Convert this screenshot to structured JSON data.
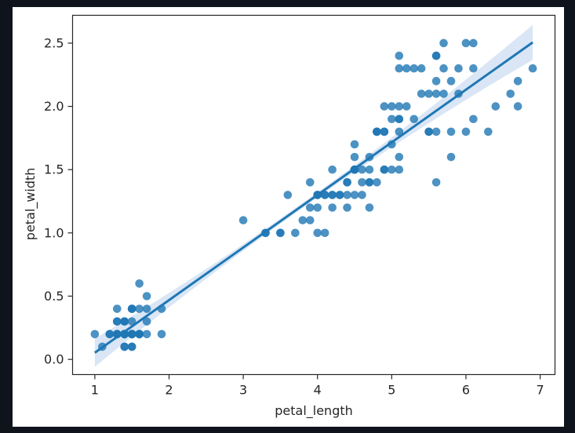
{
  "chart_data": {
    "type": "scatter",
    "xlabel": "petal_length",
    "ylabel": "petal_width",
    "xlim": [
      0.7,
      7.2
    ],
    "ylim": [
      -0.12,
      2.72
    ],
    "xticks": [
      {
        "value": 1,
        "label": "1"
      },
      {
        "value": 2,
        "label": "2"
      },
      {
        "value": 3,
        "label": "3"
      },
      {
        "value": 4,
        "label": "4"
      },
      {
        "value": 5,
        "label": "5"
      },
      {
        "value": 6,
        "label": "6"
      },
      {
        "value": 7,
        "label": "7"
      }
    ],
    "yticks": [
      {
        "value": 0.0,
        "label": "0.0"
      },
      {
        "value": 0.5,
        "label": "0.5"
      },
      {
        "value": 1.0,
        "label": "1.0"
      },
      {
        "value": 1.5,
        "label": "1.5"
      },
      {
        "value": 2.0,
        "label": "2.0"
      },
      {
        "value": 2.5,
        "label": "2.5"
      }
    ],
    "grid": false,
    "series": [
      {
        "points": [
          [
            1.4,
            0.2
          ],
          [
            1.4,
            0.2
          ],
          [
            1.3,
            0.2
          ],
          [
            1.5,
            0.2
          ],
          [
            1.4,
            0.2
          ],
          [
            1.7,
            0.4
          ],
          [
            1.4,
            0.3
          ],
          [
            1.5,
            0.2
          ],
          [
            1.4,
            0.2
          ],
          [
            1.5,
            0.1
          ],
          [
            1.5,
            0.2
          ],
          [
            1.6,
            0.2
          ],
          [
            1.4,
            0.1
          ],
          [
            1.1,
            0.1
          ],
          [
            1.2,
            0.2
          ],
          [
            1.5,
            0.4
          ],
          [
            1.3,
            0.4
          ],
          [
            1.4,
            0.3
          ],
          [
            1.7,
            0.3
          ],
          [
            1.5,
            0.3
          ],
          [
            1.7,
            0.2
          ],
          [
            1.5,
            0.4
          ],
          [
            1.0,
            0.2
          ],
          [
            1.7,
            0.5
          ],
          [
            1.9,
            0.2
          ],
          [
            1.6,
            0.2
          ],
          [
            1.6,
            0.4
          ],
          [
            1.5,
            0.2
          ],
          [
            1.4,
            0.2
          ],
          [
            1.6,
            0.2
          ],
          [
            1.6,
            0.2
          ],
          [
            1.5,
            0.4
          ],
          [
            1.5,
            0.1
          ],
          [
            1.4,
            0.2
          ],
          [
            1.5,
            0.2
          ],
          [
            1.2,
            0.2
          ],
          [
            1.3,
            0.2
          ],
          [
            1.4,
            0.1
          ],
          [
            1.3,
            0.2
          ],
          [
            1.5,
            0.2
          ],
          [
            1.3,
            0.3
          ],
          [
            1.3,
            0.3
          ],
          [
            1.3,
            0.2
          ],
          [
            1.6,
            0.6
          ],
          [
            1.9,
            0.4
          ],
          [
            1.4,
            0.3
          ],
          [
            1.6,
            0.2
          ],
          [
            1.4,
            0.2
          ],
          [
            1.5,
            0.2
          ],
          [
            1.4,
            0.2
          ],
          [
            4.7,
            1.4
          ],
          [
            4.5,
            1.5
          ],
          [
            4.9,
            1.5
          ],
          [
            4.0,
            1.3
          ],
          [
            4.6,
            1.5
          ],
          [
            4.5,
            1.3
          ],
          [
            4.7,
            1.6
          ],
          [
            3.3,
            1.0
          ],
          [
            4.6,
            1.3
          ],
          [
            3.9,
            1.4
          ],
          [
            3.5,
            1.0
          ],
          [
            4.2,
            1.5
          ],
          [
            4.0,
            1.0
          ],
          [
            4.7,
            1.4
          ],
          [
            3.6,
            1.3
          ],
          [
            4.4,
            1.4
          ],
          [
            4.5,
            1.5
          ],
          [
            4.1,
            1.0
          ],
          [
            4.5,
            1.5
          ],
          [
            3.9,
            1.1
          ],
          [
            4.8,
            1.8
          ],
          [
            4.0,
            1.3
          ],
          [
            4.9,
            1.5
          ],
          [
            4.7,
            1.2
          ],
          [
            4.3,
            1.3
          ],
          [
            4.4,
            1.4
          ],
          [
            4.8,
            1.4
          ],
          [
            5.0,
            1.7
          ],
          [
            4.5,
            1.5
          ],
          [
            3.5,
            1.0
          ],
          [
            3.8,
            1.1
          ],
          [
            3.7,
            1.0
          ],
          [
            3.9,
            1.2
          ],
          [
            5.1,
            1.6
          ],
          [
            4.5,
            1.5
          ],
          [
            4.5,
            1.6
          ],
          [
            4.7,
            1.5
          ],
          [
            4.4,
            1.3
          ],
          [
            4.1,
            1.3
          ],
          [
            4.0,
            1.3
          ],
          [
            4.4,
            1.2
          ],
          [
            4.6,
            1.4
          ],
          [
            4.0,
            1.2
          ],
          [
            3.3,
            1.0
          ],
          [
            4.2,
            1.3
          ],
          [
            4.2,
            1.2
          ],
          [
            4.2,
            1.3
          ],
          [
            4.3,
            1.3
          ],
          [
            3.0,
            1.1
          ],
          [
            4.1,
            1.3
          ],
          [
            6.0,
            2.5
          ],
          [
            5.1,
            1.9
          ],
          [
            5.9,
            2.1
          ],
          [
            5.6,
            1.8
          ],
          [
            5.8,
            2.2
          ],
          [
            6.6,
            2.1
          ],
          [
            4.5,
            1.7
          ],
          [
            6.3,
            1.8
          ],
          [
            5.8,
            1.8
          ],
          [
            6.1,
            2.5
          ],
          [
            5.1,
            2.0
          ],
          [
            5.3,
            1.9
          ],
          [
            5.5,
            2.1
          ],
          [
            5.0,
            2.0
          ],
          [
            5.1,
            2.4
          ],
          [
            5.3,
            2.3
          ],
          [
            5.5,
            1.8
          ],
          [
            6.7,
            2.2
          ],
          [
            6.9,
            2.3
          ],
          [
            5.0,
            1.5
          ],
          [
            5.7,
            2.3
          ],
          [
            4.9,
            2.0
          ],
          [
            6.7,
            2.0
          ],
          [
            4.9,
            1.8
          ],
          [
            5.7,
            2.1
          ],
          [
            6.0,
            1.8
          ],
          [
            4.8,
            1.8
          ],
          [
            4.9,
            1.8
          ],
          [
            5.6,
            2.1
          ],
          [
            5.8,
            1.6
          ],
          [
            6.1,
            1.9
          ],
          [
            6.4,
            2.0
          ],
          [
            5.6,
            2.2
          ],
          [
            5.1,
            1.5
          ],
          [
            5.6,
            1.4
          ],
          [
            6.1,
            2.3
          ],
          [
            5.6,
            2.4
          ],
          [
            5.5,
            1.8
          ],
          [
            4.8,
            1.8
          ],
          [
            5.4,
            2.1
          ],
          [
            5.6,
            2.4
          ],
          [
            5.1,
            2.3
          ],
          [
            5.1,
            1.9
          ],
          [
            5.9,
            2.3
          ],
          [
            5.7,
            2.5
          ],
          [
            5.2,
            2.3
          ],
          [
            5.0,
            1.9
          ],
          [
            5.2,
            2.0
          ],
          [
            5.4,
            2.3
          ],
          [
            5.1,
            1.8
          ]
        ],
        "color": "#1f77b4"
      }
    ],
    "regression": {
      "x_range": [
        1.0,
        6.9
      ],
      "slope": 0.4158,
      "intercept": -0.3631,
      "ci_color": "#aec7e8"
    }
  }
}
